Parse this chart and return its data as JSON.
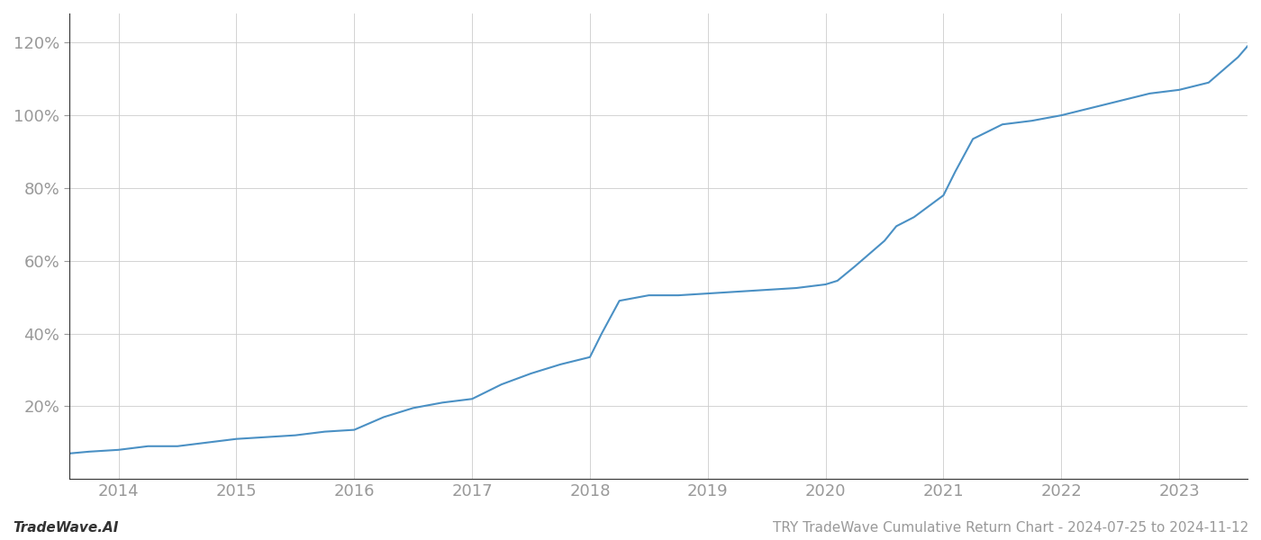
{
  "title": "TRY TradeWave Cumulative Return Chart - 2024-07-25 to 2024-11-12",
  "watermark": "TradeWave.AI",
  "line_color": "#4a90c4",
  "background_color": "#ffffff",
  "grid_color": "#cccccc",
  "x_years": [
    2014,
    2015,
    2016,
    2017,
    2018,
    2019,
    2020,
    2021,
    2022,
    2023
  ],
  "x_data": [
    2013.58,
    2013.75,
    2014.0,
    2014.25,
    2014.5,
    2014.75,
    2015.0,
    2015.25,
    2015.5,
    2015.75,
    2016.0,
    2016.25,
    2016.5,
    2016.75,
    2017.0,
    2017.25,
    2017.5,
    2017.75,
    2018.0,
    2018.1,
    2018.25,
    2018.5,
    2018.75,
    2019.0,
    2019.25,
    2019.5,
    2019.75,
    2020.0,
    2020.1,
    2020.25,
    2020.5,
    2020.6,
    2020.75,
    2021.0,
    2021.1,
    2021.25,
    2021.5,
    2021.75,
    2022.0,
    2022.25,
    2022.5,
    2022.75,
    2023.0,
    2023.25,
    2023.5,
    2023.58
  ],
  "y_data": [
    0.07,
    0.075,
    0.08,
    0.09,
    0.09,
    0.1,
    0.11,
    0.115,
    0.12,
    0.13,
    0.135,
    0.17,
    0.195,
    0.21,
    0.22,
    0.26,
    0.29,
    0.315,
    0.335,
    0.4,
    0.49,
    0.505,
    0.505,
    0.51,
    0.515,
    0.52,
    0.525,
    0.535,
    0.545,
    0.585,
    0.655,
    0.695,
    0.72,
    0.78,
    0.845,
    0.935,
    0.975,
    0.985,
    1.0,
    1.02,
    1.04,
    1.06,
    1.07,
    1.09,
    1.16,
    1.19
  ],
  "ylim": [
    0,
    1.28
  ],
  "yticks": [
    0.2,
    0.4,
    0.6,
    0.8,
    1.0,
    1.2
  ],
  "ytick_labels": [
    "20%",
    "40%",
    "60%",
    "80%",
    "100%",
    "120%"
  ],
  "tick_fontsize": 13,
  "title_fontsize": 11,
  "watermark_fontsize": 11,
  "line_width": 1.5,
  "tick_color": "#999999",
  "axis_color": "#555555",
  "spine_color": "#333333"
}
